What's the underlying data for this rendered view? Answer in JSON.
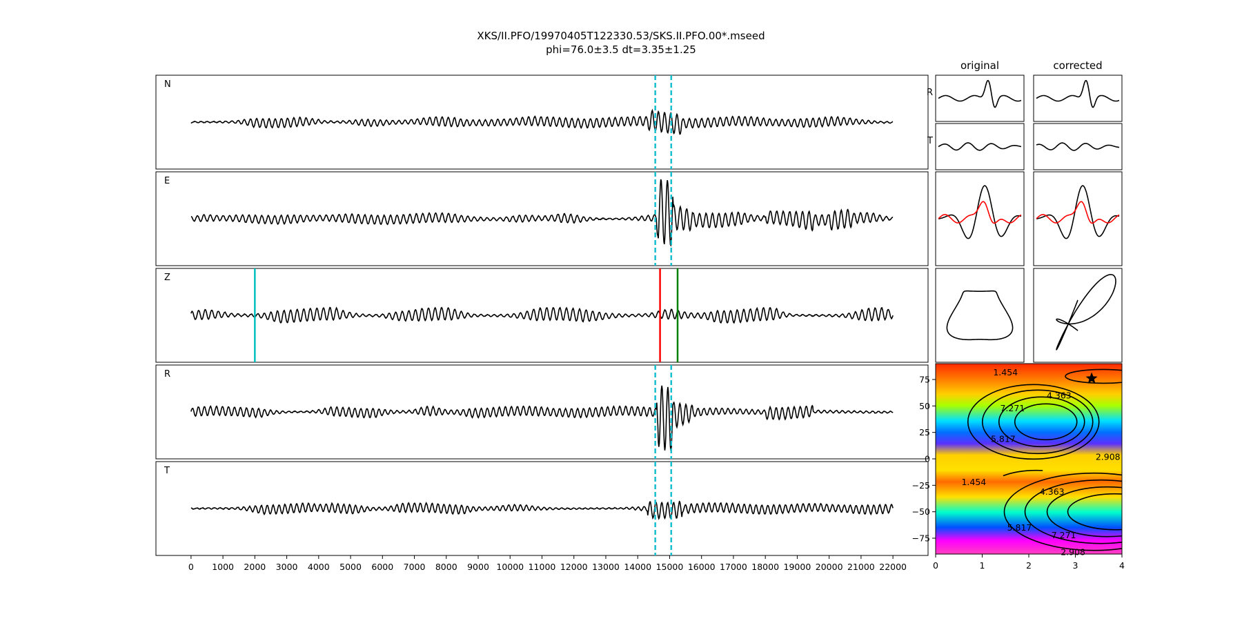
{
  "title": {
    "line1": "XKS/II.PFO/19970405T122330.53/SKS.II.PFO.00*.mseed",
    "line2": "phi=76.0±3.5 dt=3.35±1.25"
  },
  "colors": {
    "trace": "#000000",
    "window_marker": "#17becf",
    "cyan_pick": "#00bfbf",
    "red_pick": "#ff0000",
    "green_pick": "#008000",
    "particle_red": "#ff0000"
  },
  "chart_data": [
    {
      "type": "line",
      "name": "waveforms",
      "panels": [
        "N",
        "E",
        "Z",
        "R",
        "T"
      ],
      "x_ticks": [
        0,
        1000,
        2000,
        3000,
        4000,
        5000,
        6000,
        7000,
        8000,
        9000,
        10000,
        11000,
        12000,
        13000,
        14000,
        15000,
        16000,
        17000,
        18000,
        19000,
        20000,
        21000,
        22000
      ],
      "x_tick_labels": [
        "0",
        "1000",
        "2000",
        "3000",
        "4000",
        "5000",
        "6000",
        "7000",
        "8000",
        "9000",
        "10000",
        "11000",
        "12000",
        "13000",
        "14000",
        "15000",
        "16000",
        "17000",
        "18000",
        "19000",
        "20000",
        "21000",
        "22000"
      ],
      "xlim": [
        -1100,
        23100
      ],
      "data_range": [
        0,
        22000
      ],
      "window_lines_x": [
        14550,
        15050
      ],
      "window_line_panels": [
        "N",
        "E",
        "R",
        "T"
      ],
      "z_picks": [
        {
          "x": 2000,
          "color": "cyan"
        },
        {
          "x": 14700,
          "color": "red"
        },
        {
          "x": 15250,
          "color": "green"
        }
      ]
    },
    {
      "type": "line",
      "name": "particle-panels",
      "column_titles": [
        "original",
        "corrected"
      ],
      "row_labels": [
        "R",
        "T"
      ]
    },
    {
      "type": "heatmap",
      "name": "error-surface",
      "x_ticks": [
        0,
        1,
        2,
        3,
        4
      ],
      "x_tick_labels": [
        "0",
        "1",
        "2",
        "3",
        "4"
      ],
      "xlim": [
        0,
        4
      ],
      "y_ticks": [
        75,
        50,
        25,
        0,
        -25,
        -50,
        -75
      ],
      "y_tick_labels": [
        "75",
        "50",
        "25",
        "0",
        "−25",
        "−50",
        "−75"
      ],
      "ylim": [
        -90,
        90
      ],
      "contour_levels": [
        "1.454",
        "2.908",
        "4.363",
        "5.817",
        "7.271"
      ],
      "best_fit": {
        "x": 3.35,
        "y": 76.0
      }
    }
  ]
}
